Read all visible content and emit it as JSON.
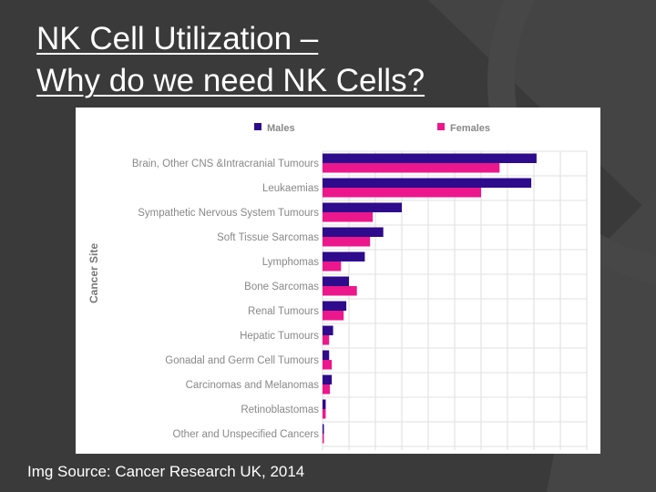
{
  "slide": {
    "title_line1": "NK Cell Utilization –",
    "title_line2": "Why do we need NK Cells?",
    "source": "Img Source: Cancer Research UK, 2014"
  },
  "colors": {
    "background": "#3a3a3a",
    "males": "#2e0a8c",
    "females": "#ec178c"
  },
  "chart_data": {
    "type": "bar",
    "orientation": "horizontal",
    "ylabel": "Cancer Site",
    "xlabel": "",
    "legend_position": "top",
    "grid": true,
    "xlim": [
      0,
      100
    ],
    "categories": [
      "Brain, Other CNS &Intracranial Tumours",
      "Leukaemias",
      "Sympathetic Nervous System Tumours",
      "Soft Tissue Sarcomas",
      "Lymphomas",
      "Bone Sarcomas",
      "Renal Tumours",
      "Hepatic Tumours",
      "Gonadal and Germ Cell Tumours",
      "Carcinomas and Melanomas",
      "Retinoblastomas",
      "Other and Unspecified Cancers"
    ],
    "series": [
      {
        "name": "Males",
        "values": [
          81,
          79,
          30,
          23,
          16,
          10,
          9,
          4,
          2.5,
          3.5,
          1.2,
          0.5
        ]
      },
      {
        "name": "Females",
        "values": [
          67,
          60,
          19,
          18,
          7,
          13,
          8,
          2.5,
          3.5,
          2.8,
          1.2,
          0.3
        ]
      }
    ]
  }
}
